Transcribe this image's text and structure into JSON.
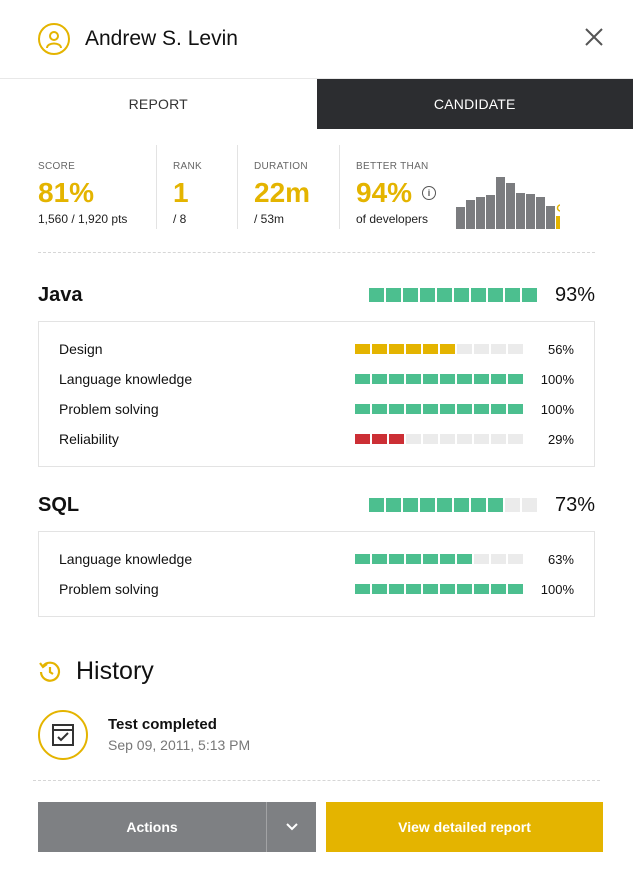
{
  "candidate": {
    "name": "Andrew S. Levin"
  },
  "tabs": [
    {
      "label": "REPORT"
    },
    {
      "label": "CANDIDATE"
    }
  ],
  "stats": {
    "score": {
      "label": "SCORE",
      "value": "81%",
      "sub": "1,560 / 1,920 pts"
    },
    "rank": {
      "label": "RANK",
      "value": "1",
      "sub": "/ 8"
    },
    "duration": {
      "label": "DURATION",
      "value": "22m",
      "sub": "/ 53m"
    },
    "better": {
      "label": "BETTER THAN",
      "value": "94%",
      "sub": "of developers",
      "histogram": [
        0.42,
        0.55,
        0.62,
        0.66,
        1.0,
        0.88,
        0.7,
        0.68,
        0.62,
        0.45
      ],
      "histogram_highlight": 0.45
    }
  },
  "skills": [
    {
      "name": "Java",
      "pct": "93%",
      "filled": 10,
      "total": 10,
      "items": [
        {
          "label": "Design",
          "pct": "56%",
          "filled": 6,
          "total": 10,
          "color": "#e4b400"
        },
        {
          "label": "Language knowledge",
          "pct": "100%",
          "filled": 10,
          "total": 10,
          "color": "#4cbf8f"
        },
        {
          "label": "Problem solving",
          "pct": "100%",
          "filled": 10,
          "total": 10,
          "color": "#4cbf8f"
        },
        {
          "label": "Reliability",
          "pct": "29%",
          "filled": 3,
          "total": 10,
          "color": "#cc2f35"
        }
      ]
    },
    {
      "name": "SQL",
      "pct": "73%",
      "filled": 8,
      "total": 10,
      "items": [
        {
          "label": "Language knowledge",
          "pct": "63%",
          "filled": 7,
          "total": 10,
          "color": "#4cbf8f"
        },
        {
          "label": "Problem solving",
          "pct": "100%",
          "filled": 10,
          "total": 10,
          "color": "#4cbf8f"
        }
      ]
    }
  ],
  "history": {
    "title": "History",
    "entries": [
      {
        "title": "Test completed",
        "date": "Sep 09, 2011, 5:13 PM"
      }
    ]
  },
  "footer": {
    "actions_label": "Actions",
    "view_label": "View detailed report"
  },
  "colors": {
    "accent": "#e4b400",
    "good": "#4cbf8f",
    "bad": "#cc2f35",
    "empty": "#ebebeb",
    "dark_tab": "#2c2d30",
    "button_gray": "#7e8083"
  }
}
